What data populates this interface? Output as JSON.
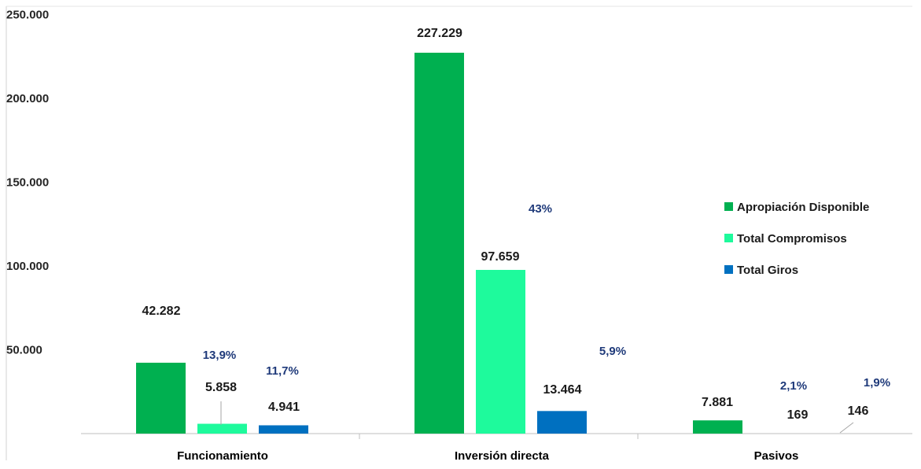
{
  "chart_data": {
    "type": "bar",
    "categories": [
      "Funcionamiento",
      "Inversión directa",
      "Pasivos"
    ],
    "series": [
      {
        "name": "Apropiación Disponible",
        "color": "#00b050",
        "values": [
          42282,
          227229,
          7881
        ],
        "labels": [
          "42.282",
          "227.229",
          "7.881"
        ]
      },
      {
        "name": "Total Compromisos",
        "color": "#1efa9c",
        "values": [
          5858,
          97659,
          169
        ],
        "labels": [
          "5.858",
          "97.659",
          "169"
        ]
      },
      {
        "name": "Total Giros",
        "color": "#0070c0",
        "values": [
          4941,
          13464,
          146
        ],
        "labels": [
          "4.941",
          "13.464",
          "146"
        ]
      }
    ],
    "percent_labels": [
      {
        "series": "Total Compromisos",
        "labels": [
          "13,9%",
          "43%",
          "2,1%"
        ]
      },
      {
        "series": "Total Giros",
        "labels": [
          "11,7%",
          "5,9%",
          "1,9%"
        ]
      }
    ],
    "yticks": [
      "250.000",
      "200.000",
      "150.000",
      "100.000",
      "50.000"
    ],
    "ytick_values": [
      250000,
      200000,
      150000,
      100000,
      50000
    ],
    "ylim": [
      0,
      250000
    ],
    "legend_position": "right",
    "grid": false
  }
}
